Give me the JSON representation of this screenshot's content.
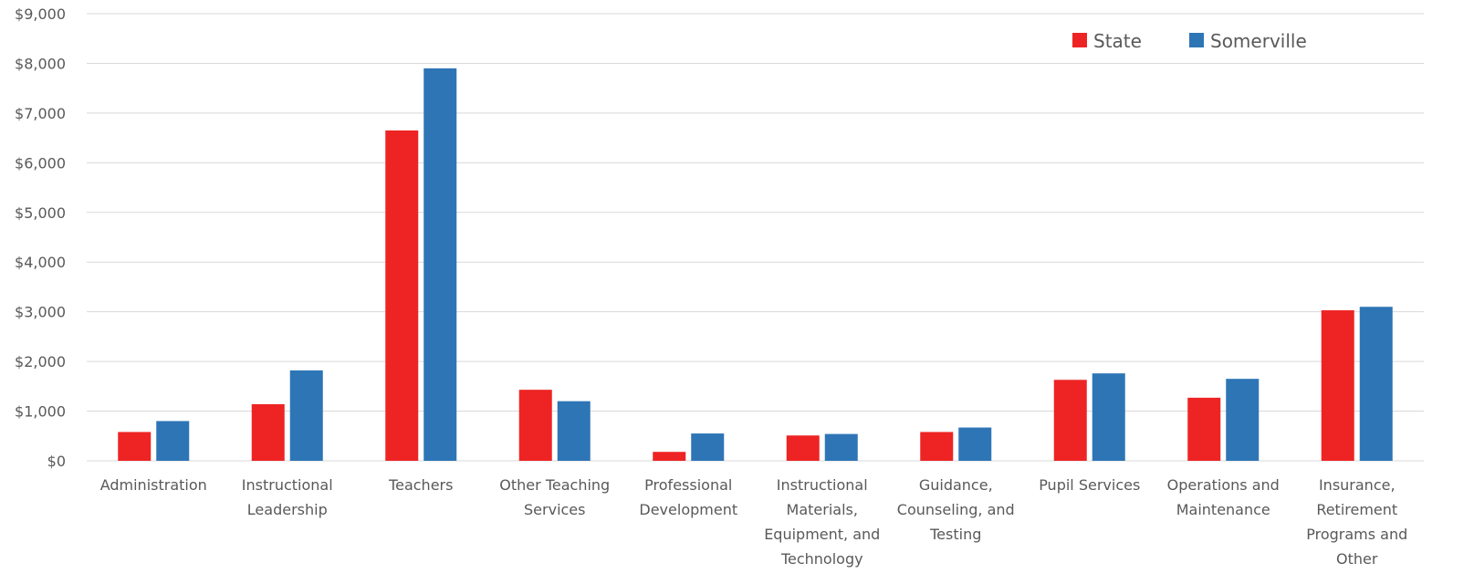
{
  "chart_data": {
    "type": "bar",
    "title": "",
    "xlabel": "",
    "ylabel": "",
    "ylim": [
      0,
      9000
    ],
    "y_tick_step": 1000,
    "y_tick_labels": [
      "$0",
      "$1,000",
      "$2,000",
      "$3,000",
      "$4,000",
      "$5,000",
      "$6,000",
      "$7,000",
      "$8,000",
      "$9,000"
    ],
    "grid": true,
    "legend_position": "top-right",
    "categories": [
      [
        "Administration"
      ],
      [
        "Instructional",
        "Leadership"
      ],
      [
        "Teachers"
      ],
      [
        "Other Teaching",
        "Services"
      ],
      [
        "Professional",
        "Development"
      ],
      [
        "Instructional",
        "Materials,",
        "Equipment, and",
        "Technology"
      ],
      [
        "Guidance,",
        "Counseling, and",
        "Testing"
      ],
      [
        "Pupil Services"
      ],
      [
        "Operations and",
        "Maintenance"
      ],
      [
        "Insurance,",
        "Retirement",
        "Programs and",
        "Other"
      ]
    ],
    "series": [
      {
        "name": "State",
        "color": "#ee2424",
        "values": [
          580,
          1140,
          6650,
          1430,
          180,
          510,
          580,
          1630,
          1270,
          3030
        ]
      },
      {
        "name": "Somerville",
        "color": "#2e75b6",
        "values": [
          800,
          1820,
          7900,
          1200,
          550,
          540,
          670,
          1760,
          1650,
          3100
        ]
      }
    ]
  }
}
